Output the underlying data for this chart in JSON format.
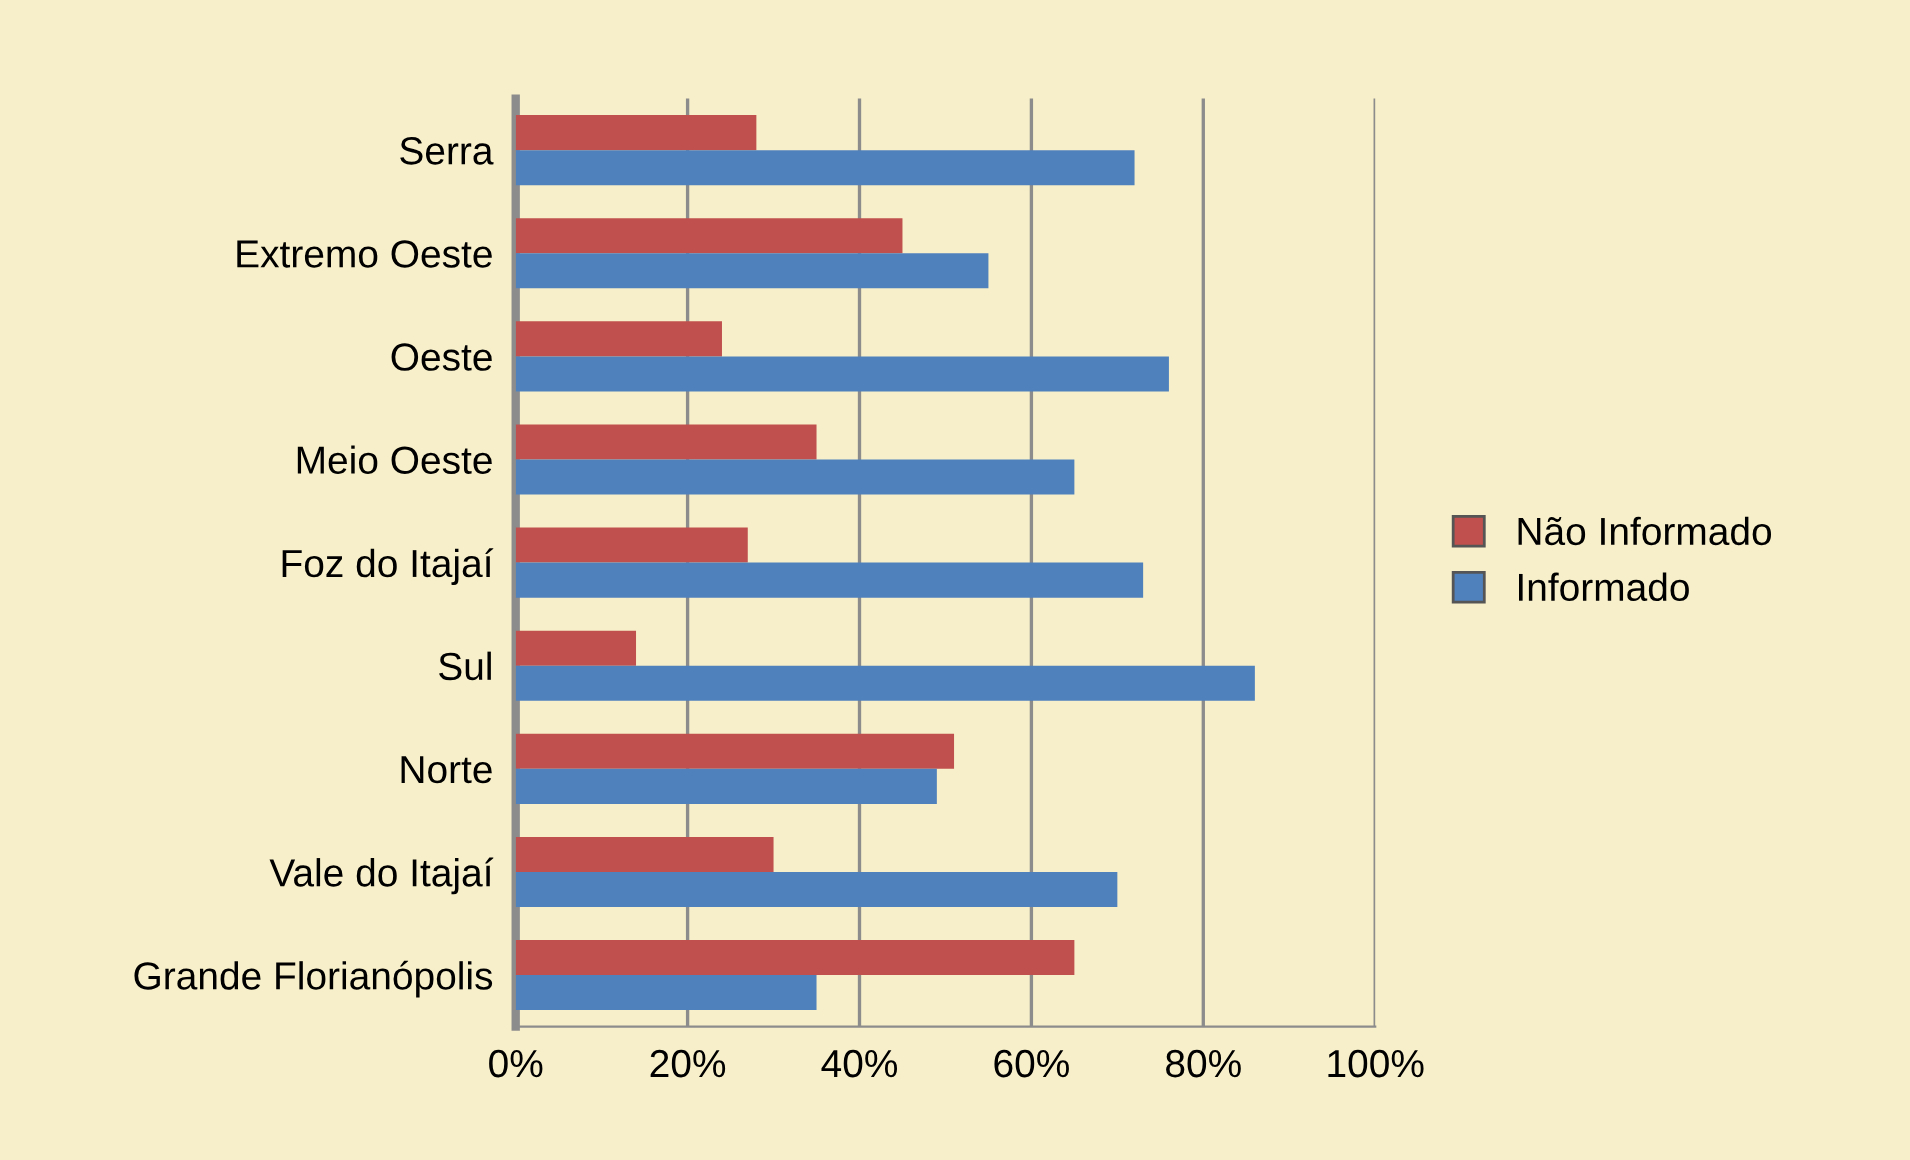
{
  "chart_data": {
    "type": "bar",
    "orientation": "horizontal",
    "categories": [
      "Serra",
      "Extremo Oeste",
      "Oeste",
      "Meio Oeste",
      "Foz do Itajaí",
      "Sul",
      "Norte",
      "Vale do Itajaí",
      "Grande Florianópolis"
    ],
    "series": [
      {
        "name": "Não Informado",
        "color": "#c0504d",
        "values": [
          28,
          45,
          24,
          35,
          27,
          14,
          51,
          30,
          65
        ]
      },
      {
        "name": "Informado",
        "color": "#4f81bd",
        "values": [
          72,
          55,
          76,
          65,
          73,
          86,
          49,
          70,
          35
        ]
      }
    ],
    "xlim": [
      0,
      100
    ],
    "xticks": [
      {
        "value": 0,
        "label": "0%"
      },
      {
        "value": 20,
        "label": "20%"
      },
      {
        "value": 40,
        "label": "40%"
      },
      {
        "value": 60,
        "label": "60%"
      },
      {
        "value": 80,
        "label": "80%"
      },
      {
        "value": 100,
        "label": "100%"
      }
    ],
    "grid": "x",
    "legend": "right"
  }
}
